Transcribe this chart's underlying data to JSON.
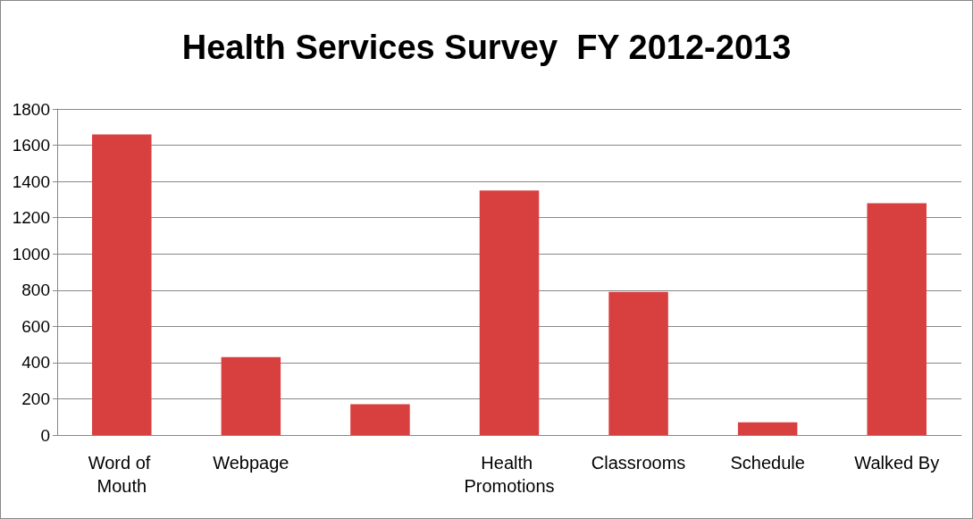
{
  "chart_data": {
    "type": "bar",
    "title": "Health Services Survey  FY 2012-2013",
    "categories": [
      "Word of Mouth",
      "Webpage",
      null,
      "Health Promotions",
      "Classrooms",
      "Schedule",
      "Walked By"
    ],
    "values": [
      1660,
      430,
      170,
      1350,
      790,
      70,
      1280
    ],
    "color": "#d84040",
    "ylim": [
      0,
      1800
    ],
    "yticks": [
      0,
      200,
      400,
      600,
      800,
      1000,
      1200,
      1400,
      1600,
      1800
    ],
    "grid": "y"
  }
}
